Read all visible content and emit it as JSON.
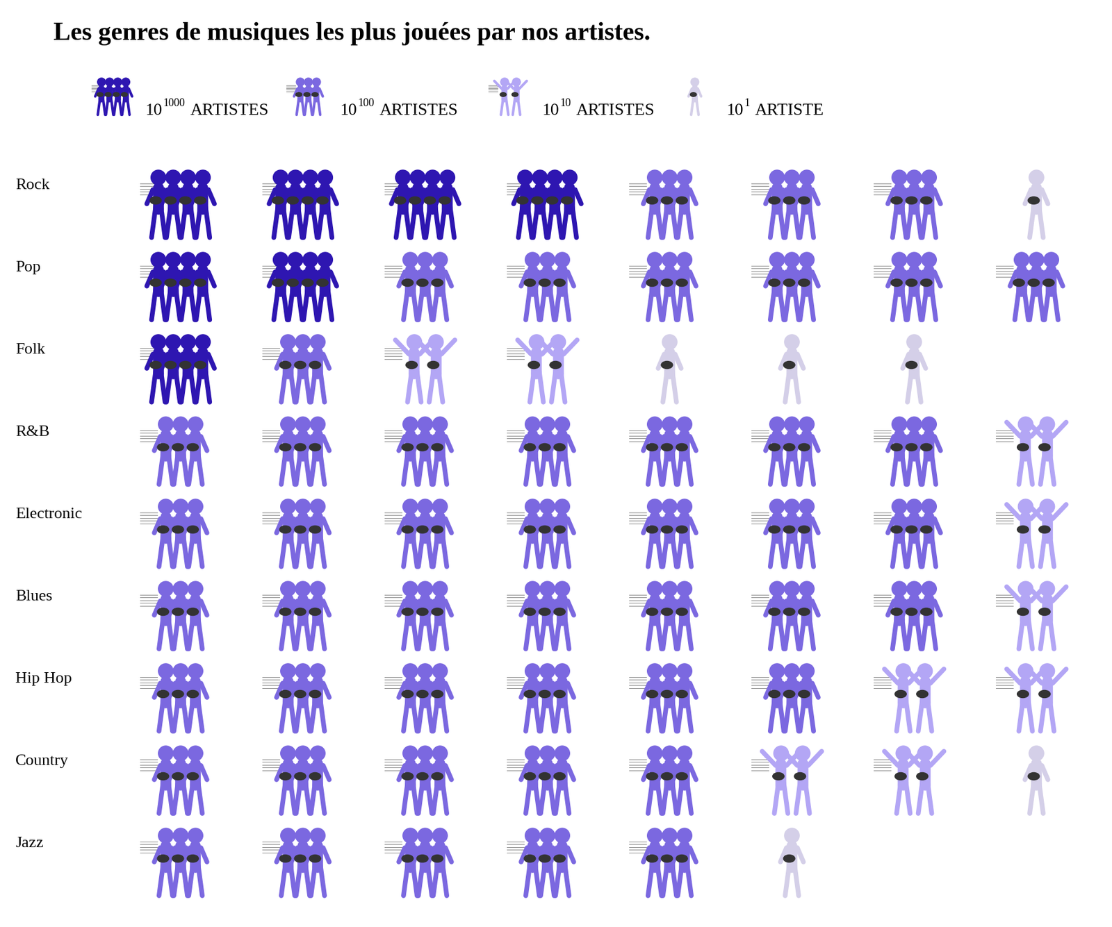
{
  "chart_data": {
    "type": "pictograph",
    "title": "Les genres de musiques les plus jouées par nos artistes.",
    "categories": [
      "Rock",
      "Pop",
      "Folk",
      "R&B",
      "Electronic",
      "Blues",
      "Hip Hop",
      "Country",
      "Jazz"
    ],
    "series": [
      {
        "name": "ARTISTES",
        "base": 10,
        "exponent": 1000,
        "color": "#2e16b1",
        "values": [
          4,
          2,
          1,
          0,
          0,
          0,
          0,
          0,
          0
        ]
      },
      {
        "name": "ARTISTES",
        "base": 10,
        "exponent": 100,
        "color": "#7b68e0",
        "values": [
          3,
          6,
          1,
          7,
          7,
          7,
          6,
          5,
          5
        ]
      },
      {
        "name": "ARTISTES",
        "base": 10,
        "exponent": 10,
        "color": "#b3a6f5",
        "values": [
          0,
          0,
          2,
          1,
          1,
          1,
          2,
          2,
          0
        ]
      },
      {
        "name": "ARTISTE",
        "base": 10,
        "exponent": 1,
        "color": "#d4cfe8",
        "values": [
          1,
          0,
          3,
          0,
          0,
          0,
          0,
          1,
          1
        ]
      }
    ]
  }
}
